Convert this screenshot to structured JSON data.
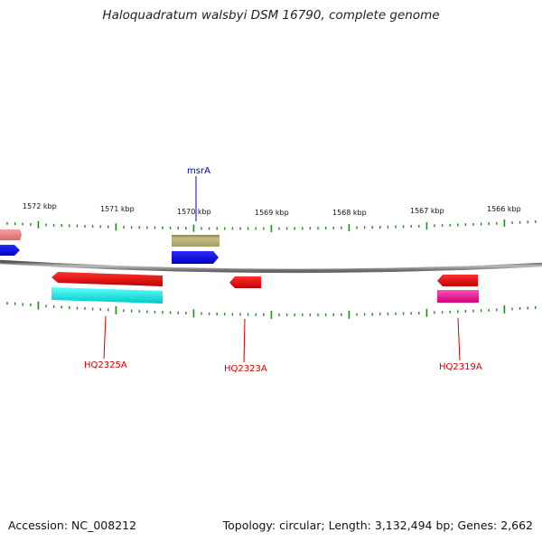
{
  "title": "Haloquadratum walsbyi DSM 16790, complete genome",
  "footer": {
    "accession": "Accession: NC_008212",
    "summary": "Topology: circular; Length: 3,132,494 bp; Genes: 2,662"
  },
  "colors": {
    "backbone": "#7a7a7a",
    "tick": "#228822",
    "label_blue": "#0000cc",
    "label_red": "#cc0000"
  },
  "scale_labels": [
    "1572 kbp",
    "1571 kbp",
    "1570 kbp",
    "1569 kbp",
    "1568 kbp",
    "1567 kbp",
    "1566 kbp"
  ],
  "features": [
    {
      "id": "f-left-pink",
      "strand": "plus",
      "color": "#f08080"
    },
    {
      "id": "f-left-blue",
      "strand": "plus",
      "color": "#0000ee"
    },
    {
      "id": "f-msrA-olive",
      "strand": "plus",
      "color": "#b5ad72"
    },
    {
      "id": "f-msrA-blue",
      "strand": "plus",
      "color": "#0000ee"
    },
    {
      "id": "f-HQ2325A-red",
      "strand": "minus",
      "color": "#ee0000"
    },
    {
      "id": "f-HQ2325A-cyan",
      "strand": "minus",
      "color": "#00eeee"
    },
    {
      "id": "f-HQ2323A-red",
      "strand": "minus",
      "color": "#ee0000"
    },
    {
      "id": "f-HQ2319A-red",
      "strand": "minus",
      "color": "#ee0000"
    },
    {
      "id": "f-HQ2319A-magenta",
      "strand": "minus",
      "color": "#ee1199"
    }
  ],
  "gene_labels": [
    {
      "text": "msrA",
      "color": "#0000cc"
    },
    {
      "text": "HQ2325A",
      "color": "#cc0000"
    },
    {
      "text": "HQ2323A",
      "color": "#cc0000"
    },
    {
      "text": "HQ2319A",
      "color": "#cc0000"
    }
  ]
}
